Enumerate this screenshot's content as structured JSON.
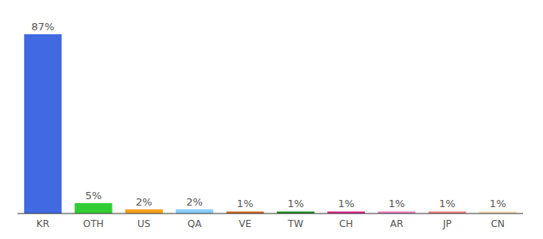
{
  "chart_data": {
    "type": "bar",
    "categories": [
      "KR",
      "OTH",
      "US",
      "QA",
      "VE",
      "TW",
      "CH",
      "AR",
      "JP",
      "CN"
    ],
    "values": [
      87,
      5,
      2,
      2,
      1,
      1,
      1,
      1,
      1,
      1
    ],
    "value_labels": [
      "87%",
      "5%",
      "2%",
      "2%",
      "1%",
      "1%",
      "1%",
      "1%",
      "1%",
      "1%"
    ],
    "colors": [
      "#4169e1",
      "#32cd32",
      "#f5a11c",
      "#87cefa",
      "#d2691e",
      "#228b22",
      "#e0218a",
      "#e67fb9",
      "#f08080",
      "#f5deb3"
    ],
    "data_labels": true,
    "tick_labels": "x",
    "grid": false
  }
}
